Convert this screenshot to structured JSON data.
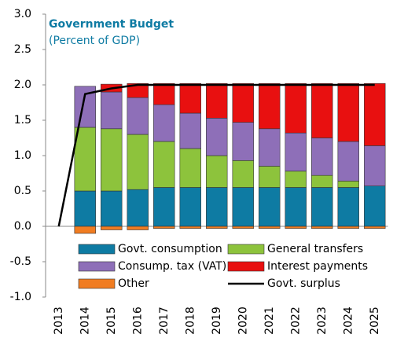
{
  "chart_data": {
    "type": "bar",
    "stacked": true,
    "title": "Government Budget",
    "subtitle": "(Percent of GDP)",
    "categories": [
      "2013",
      "2014",
      "2015",
      "2016",
      "2017",
      "2018",
      "2019",
      "2020",
      "2021",
      "2022",
      "2023",
      "2024",
      "2025"
    ],
    "series": [
      {
        "name": "Govt. consumption",
        "color": "#0e7ba3",
        "values": [
          null,
          0.5,
          0.5,
          0.52,
          0.55,
          0.55,
          0.55,
          0.55,
          0.55,
          0.55,
          0.55,
          0.55,
          0.57
        ]
      },
      {
        "name": "General transfers",
        "color": "#8dc33c",
        "values": [
          null,
          0.9,
          0.88,
          0.78,
          0.65,
          0.55,
          0.45,
          0.38,
          0.3,
          0.23,
          0.17,
          0.09,
          0.0
        ]
      },
      {
        "name": "Consump. tax (VAT)",
        "color": "#8e6fb8",
        "values": [
          null,
          0.58,
          0.52,
          0.52,
          0.52,
          0.5,
          0.53,
          0.54,
          0.53,
          0.54,
          0.53,
          0.56,
          0.57
        ]
      },
      {
        "name": "Interest payments",
        "color": "#e81010",
        "values": [
          null,
          0,
          0.11,
          0.2,
          0.3,
          0.42,
          0.49,
          0.55,
          0.64,
          0.7,
          0.77,
          0.82,
          0.88
        ]
      },
      {
        "name": "Other",
        "color": "#f07c21",
        "values": [
          null,
          -0.1,
          -0.05,
          -0.05,
          -0.03,
          -0.03,
          -0.03,
          -0.03,
          -0.03,
          -0.03,
          -0.03,
          -0.03,
          -0.03
        ]
      },
      {
        "name": "Govt. surplus",
        "color": "#000000",
        "type": "line",
        "values": [
          0,
          1.87,
          1.95,
          2.0,
          2.0,
          2.0,
          2.0,
          2.0,
          2.0,
          2.0,
          2.0,
          2.0,
          2.0
        ]
      }
    ],
    "ylim": [
      -1,
      3
    ],
    "yticks": [
      {
        "value": -1,
        "label": "-1.0"
      },
      {
        "value": -0.5,
        "label": "-0.5"
      },
      {
        "value": 0,
        "label": "0.0"
      },
      {
        "value": 0.5,
        "label": "0.5"
      },
      {
        "value": 1,
        "label": "1.0"
      },
      {
        "value": 1.5,
        "label": "1.5"
      },
      {
        "value": 2,
        "label": "2.0"
      },
      {
        "value": 2.5,
        "label": "2.5"
      },
      {
        "value": 3,
        "label": "3.0"
      }
    ],
    "grid": false,
    "legend": "lower"
  }
}
